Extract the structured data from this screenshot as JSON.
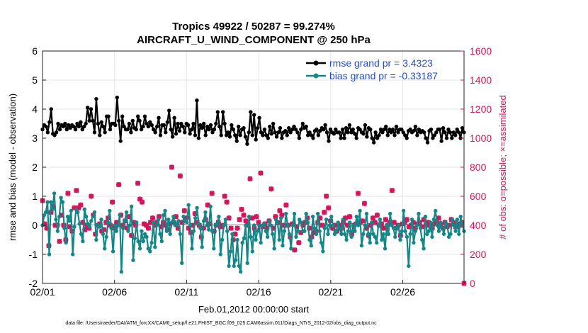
{
  "chart_data": {
    "type": "line",
    "title": "Tropics 49922 / 50287 = 99.274%",
    "subtitle": "AIRCRAFT_U_WIND_COMPONENT @ 250 hPa",
    "xlabel": "Feb.01,2012 00:00:00 start",
    "ylabel": "rmse and bias (model - observation)",
    "ylabel_right": "# of obs: o=possible; ×=assimilated",
    "footer": "data file: /Users/raeder/DAI/ATM_forcXX/CAM6_setup/f.e21.FHIST_BGC.f09_025.CAM6assim.011/Diags_NTrS_2012-02/obs_diag_output.nc",
    "xlim": [
      0,
      29.25
    ],
    "ylim": [
      -2,
      6
    ],
    "ylim_right": [
      0,
      1600
    ],
    "x_ticks": [
      0,
      5,
      10,
      15,
      20,
      25
    ],
    "x_tick_labels": [
      "02/01",
      "02/06",
      "02/11",
      "02/16",
      "02/21",
      "02/26"
    ],
    "y_tick_labels": [
      "-2",
      "-1",
      "0",
      "1",
      "2",
      "3",
      "4",
      "5",
      "6"
    ],
    "y_right_tick_labels": [
      "0",
      "200",
      "400",
      "600",
      "800",
      "1000",
      "1200",
      "1400",
      "1600"
    ],
    "grid": true,
    "legend_position": "top-right",
    "zero_line": 0,
    "series": [
      {
        "name": "rmse",
        "legend": "rmse grand pr = 3.4323",
        "color": "#000000",
        "values": [
          3.3,
          3.45,
          3.4,
          3.2,
          3.55,
          4.0,
          3.15,
          3.1,
          3.2,
          3.5,
          3.3,
          3.45,
          3.4,
          3.5,
          3.3,
          3.45,
          3.35,
          3.45,
          3.4,
          3.3,
          3.5,
          3.4,
          3.55,
          3.3,
          3.4,
          3.5,
          4.05,
          3.6,
          4.0,
          3.6,
          3.2,
          4.35,
          3.5,
          3.1,
          3.55,
          3.4,
          3.2,
          3.75,
          3.75,
          3.3,
          3.5,
          3.5,
          3.45,
          4.4,
          3.6,
          2.9,
          3.75,
          3.4,
          3.3,
          3.3,
          3.5,
          3.2,
          3.6,
          3.35,
          3.3,
          3.75,
          3.6,
          3.3,
          3.4,
          3.75,
          3.5,
          3.4,
          3.55,
          3.45,
          3.3,
          3.2,
          3.4,
          3.7,
          3.1,
          3.45,
          3.45,
          3.2,
          3.55,
          3.95,
          3.3,
          3.05,
          3.7,
          3.15,
          3.5,
          3.25,
          3.5,
          3.4,
          3.2,
          3.5,
          3.45,
          3.15,
          3.3,
          3.5,
          3.1,
          4.3,
          3.0,
          3.45,
          3.35,
          3.5,
          3.1,
          3.4,
          3.3,
          3.45,
          3.2,
          3.3,
          3.5,
          3.9,
          3.4,
          3.1,
          3.9,
          3.5,
          3.1,
          3.2,
          3.05,
          3.45,
          3.3,
          3.1,
          2.9,
          3.4,
          3.1,
          3.3,
          3.35,
          3.05,
          2.8,
          3.2,
          3.9,
          3.1,
          3.8,
          2.95,
          3.35,
          3.7,
          3.2,
          3.1,
          3.3,
          3.1,
          3.0,
          3.4,
          3.15,
          3.5,
          3.2,
          3.05,
          3.2,
          3.35,
          3.0,
          3.2,
          3.25,
          3.1,
          3.35,
          3.2,
          3.3,
          3.4,
          3.3,
          3.2,
          3.0,
          3.3,
          3.5,
          3.35,
          3.4,
          3.1,
          3.2,
          3.1,
          3.0,
          3.25,
          3.3,
          3.1,
          3.25,
          3.35,
          3.3,
          3.45,
          3.2,
          2.9,
          3.3,
          3.2,
          3.15,
          3.3,
          3.2,
          3.2,
          3.0,
          3.3,
          3.0,
          3.35,
          3.2,
          3.45,
          3.2,
          3.3,
          3.15,
          3.0,
          3.35,
          3.3,
          3.2,
          3.15,
          3.45,
          3.05,
          3.35,
          3.3,
          3.0,
          2.85,
          3.2,
          3.0,
          3.1,
          3.3,
          3.2,
          3.3,
          3.4,
          3.1,
          3.3,
          3.2,
          3.3,
          3.1,
          3.4,
          3.2,
          3.3,
          3.3,
          3.2,
          3.1,
          3.0,
          3.25,
          3.3,
          3.2,
          3.25,
          3.4,
          3.1,
          3.3,
          3.2,
          3.25,
          3.2,
          3.0,
          2.85,
          3.25,
          3.3,
          3.0,
          3.1,
          3.2,
          3.3,
          3.3,
          2.9,
          3.35,
          3.2,
          3.0,
          3.3,
          3.2,
          3.0,
          3.2,
          3.1,
          3.3,
          3.2,
          3.0,
          3.35,
          3.2
        ]
      },
      {
        "name": "bias",
        "legend": "bias grand pr = -0.33187",
        "color": "#138787",
        "values": [
          0.0,
          0.35,
          0.45,
          0.8,
          -1.0,
          0.8,
          0.55,
          1.1,
          0.2,
          -0.2,
          0.3,
          0.95,
          0.8,
          -0.1,
          -0.6,
          0.3,
          0.15,
          0.5,
          -1.0,
          -0.05,
          0.55,
          0.45,
          0.05,
          -0.3,
          -0.55,
          0.55,
          0.3,
          0.05,
          -0.05,
          0.15,
          0.3,
          0.45,
          -0.5,
          0.0,
          -0.05,
          0.2,
          -0.3,
          -0.8,
          -0.4,
          0.1,
          0.5,
          -0.1,
          -0.9,
          0.0,
          -0.2,
          0.0,
          0.35,
          -1.6,
          -0.1,
          0.15,
          0.45,
          -0.2,
          0.0,
          0.65,
          -1.2,
          -0.45,
          0.1,
          -0.55,
          -0.8,
          -0.2,
          -0.55,
          -0.3,
          -0.4,
          -0.8,
          -0.9,
          -0.6,
          0.1,
          -0.75,
          0.0,
          0.2,
          -0.3,
          -0.55,
          0.35,
          0.5,
          -0.2,
          0.2,
          -0.3,
          0.1,
          0.3,
          0.0,
          0.05,
          0.15,
          -0.3,
          -1.3,
          0.3,
          0.15,
          0.1,
          0.7,
          0.0,
          -0.8,
          -0.2,
          0.25,
          0.6,
          0.05,
          -0.1,
          -0.75,
          0.15,
          0.45,
          0.0,
          -0.15,
          0.65,
          -0.2,
          -0.8,
          0.0,
          0.05,
          0.3,
          -1.0,
          -0.5,
          0.0,
          0.2,
          -0.2,
          -1.4,
          -0.9,
          -0.3,
          -1.4,
          -1.2,
          -0.5,
          -1.4,
          -1.6,
          -0.6,
          -0.45,
          0.0,
          -1.3,
          0.3,
          -0.4,
          -0.9,
          0.0,
          -0.5,
          -0.2,
          0.0,
          -0.6,
          0.0,
          0.05,
          -0.2,
          -0.4,
          0.15,
          0.0,
          -0.3,
          -0.8,
          0.2,
          0.1,
          -0.5,
          0.25,
          -0.7,
          -0.2,
          0.4,
          0.0,
          -0.3,
          -0.8,
          0.0,
          0.4,
          -0.4,
          -0.2,
          0.2,
          0.1,
          -0.2,
          -0.2,
          0.4,
          0.1,
          -0.5,
          -0.7,
          0.3,
          -0.1,
          -0.3,
          0.4,
          -0.2,
          -0.6,
          -0.9,
          -0.1,
          0.2,
          -0.3,
          0.0,
          0.3,
          0.0,
          -0.3,
          -0.2,
          0.1,
          -0.1,
          -0.3,
          0.2,
          -0.3,
          -0.5,
          -0.2,
          0.1,
          -0.4,
          0.0,
          -0.2,
          0.3,
          0.0,
          0.5,
          -0.7,
          -0.3,
          0.0,
          0.4,
          -0.3,
          -0.6,
          0.1,
          -0.3,
          -0.4,
          -0.6,
          0.0,
          0.2,
          -0.5,
          -0.3,
          -0.8,
          0.0,
          -0.3,
          0.4,
          0.0,
          -0.1,
          -0.4,
          -0.1,
          0.0,
          -0.5,
          -0.2,
          0.5,
          -0.2,
          -0.4,
          -1.4,
          -0.3,
          0.2,
          -0.6,
          -0.2,
          0.0,
          0.4,
          -0.1,
          -0.5,
          -0.8,
          0.3,
          -0.3,
          -0.2,
          0.1,
          -0.4,
          0.2,
          0.5,
          0.0,
          -0.2,
          0.1,
          -0.1,
          -0.3,
          0.1,
          0.0,
          -0.4,
          -0.3,
          0.2,
          0.0,
          -0.2,
          0.2,
          -0.3,
          0.3,
          0.0,
          -0.2
        ]
      }
    ],
    "obs_series": [
      {
        "name": "possible",
        "color": "#d4145a",
        "marker": "o",
        "values": [
          570,
          410,
          380,
          260,
          490,
          530,
          400,
          400,
          290,
          470,
          400,
          300,
          620,
          390,
          360,
          520,
          640,
          520,
          540,
          420,
          370,
          400,
          380,
          600,
          470,
          340,
          400,
          410,
          360,
          370,
          420,
          450,
          400,
          560,
          380,
          420,
          680,
          470,
          400,
          430,
          380,
          460,
          330,
          420,
          400,
          690,
          580,
          560,
          410,
          400,
          380,
          420,
          450,
          400,
          420,
          460,
          390,
          420,
          400,
          370,
          410,
          800,
          420,
          460,
          380,
          740,
          420,
          500,
          450,
          380,
          350,
          400,
          480,
          420,
          400,
          320,
          380,
          440,
          540,
          410,
          620,
          360,
          400,
          420,
          390,
          400,
          600,
          560,
          450,
          380,
          300,
          340,
          380,
          440,
          510,
          470,
          430,
          400,
          720,
          450,
          380,
          460,
          420,
          760,
          390,
          410,
          380,
          430,
          650,
          380,
          460,
          420,
          500,
          470,
          400,
          540,
          400,
          320,
          410,
          230,
          390,
          280,
          350,
          400,
          420,
          450,
          380,
          320,
          350,
          360,
          420,
          450,
          400,
          490,
          600,
          520,
          430,
          380,
          400,
          360,
          400,
          380,
          420,
          450,
          400,
          460,
          340,
          400,
          410,
          620,
          420,
          430,
          550,
          380,
          330,
          400,
          450,
          420,
          470,
          400,
          410,
          380,
          440,
          400,
          420,
          640,
          420,
          380,
          400,
          330,
          410,
          420,
          440,
          390,
          400,
          420,
          380,
          410,
          420,
          390,
          440,
          400,
          420,
          400,
          380,
          410,
          420,
          450,
          400,
          380,
          420,
          390,
          400,
          440,
          420,
          390,
          410,
          400,
          420,
          0
        ]
      },
      {
        "name": "assimilated",
        "color": "#d4145a",
        "marker": "x",
        "values": [
          570,
          410,
          380,
          260,
          490,
          530,
          400,
          400,
          290,
          470,
          400,
          300,
          620,
          390,
          360,
          520,
          640,
          520,
          540,
          420,
          370,
          400,
          380,
          600,
          470,
          340,
          400,
          410,
          360,
          370,
          420,
          450,
          400,
          560,
          380,
          420,
          680,
          470,
          400,
          430,
          380,
          460,
          330,
          420,
          400,
          690,
          580,
          560,
          410,
          400,
          380,
          420,
          450,
          400,
          420,
          460,
          390,
          420,
          400,
          370,
          410,
          800,
          420,
          460,
          380,
          740,
          420,
          500,
          450,
          380,
          350,
          400,
          480,
          420,
          400,
          320,
          380,
          440,
          540,
          410,
          620,
          360,
          400,
          420,
          390,
          400,
          600,
          560,
          450,
          380,
          300,
          340,
          380,
          440,
          510,
          470,
          430,
          400,
          720,
          450,
          380,
          460,
          420,
          760,
          390,
          410,
          380,
          430,
          650,
          380,
          460,
          420,
          500,
          470,
          400,
          540,
          400,
          320,
          410,
          230,
          390,
          280,
          350,
          400,
          420,
          450,
          380,
          320,
          350,
          360,
          420,
          450,
          400,
          490,
          600,
          520,
          430,
          380,
          400,
          360,
          400,
          380,
          420,
          450,
          400,
          460,
          340,
          400,
          410,
          620,
          420,
          430,
          550,
          380,
          330,
          400,
          450,
          420,
          470,
          400,
          410,
          380,
          440,
          400,
          420,
          640,
          420,
          380,
          400,
          330,
          410,
          420,
          440,
          390,
          400,
          420,
          380,
          410,
          420,
          390,
          440,
          400,
          420,
          400,
          380,
          410,
          420,
          450,
          400,
          380,
          420,
          390,
          400,
          440,
          420,
          390,
          410,
          400,
          420,
          0
        ]
      }
    ]
  }
}
